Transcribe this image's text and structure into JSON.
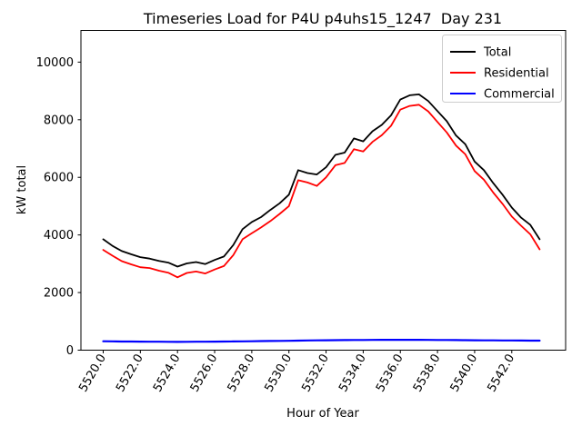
{
  "chart_data": {
    "type": "line",
    "title": "Timeseries Load for P4U p4uhs15_1247  Day 231",
    "xlabel": "Hour of Year",
    "ylabel": "kW total",
    "xlim": [
      5518.8,
      5544.9
    ],
    "ylim": [
      0,
      11100
    ],
    "grid": false,
    "legend_position": "upper right",
    "xticks": {
      "values": [
        5520,
        5522,
        5524,
        5526,
        5528,
        5530,
        5532,
        5534,
        5536,
        5538,
        5540,
        5542
      ],
      "labels": [
        "5520.0",
        "5522.0",
        "5524.0",
        "5526.0",
        "5528.0",
        "5530.0",
        "5532.0",
        "5534.0",
        "5536.0",
        "5538.0",
        "5540.0",
        "5542.0"
      ]
    },
    "yticks": {
      "values": [
        0,
        2000,
        4000,
        6000,
        8000,
        10000
      ],
      "labels": [
        "0",
        "2000",
        "4000",
        "6000",
        "8000",
        "10000"
      ]
    },
    "x": [
      5520.0,
      5520.5,
      5521.0,
      5521.5,
      5522.0,
      5522.5,
      5523.0,
      5523.5,
      5524.0,
      5524.5,
      5525.0,
      5525.5,
      5526.0,
      5526.5,
      5527.0,
      5527.5,
      5528.0,
      5528.5,
      5529.0,
      5529.5,
      5530.0,
      5530.5,
      5531.0,
      5531.5,
      5532.0,
      5532.5,
      5533.0,
      5533.5,
      5534.0,
      5534.5,
      5535.0,
      5535.5,
      5536.0,
      5536.5,
      5537.0,
      5537.5,
      5538.0,
      5538.5,
      5539.0,
      5539.5,
      5540.0,
      5540.5,
      5541.0,
      5541.5,
      5542.0,
      5542.5,
      5543.0,
      5543.5
    ],
    "series": [
      {
        "name": "Total",
        "color": "#000000",
        "values": [
          3850,
          3620,
          3440,
          3330,
          3230,
          3180,
          3100,
          3040,
          2900,
          3010,
          3060,
          2990,
          3130,
          3250,
          3650,
          4200,
          4450,
          4620,
          4870,
          5100,
          5400,
          6250,
          6150,
          6100,
          6350,
          6780,
          6860,
          7350,
          7250,
          7600,
          7820,
          8150,
          8700,
          8850,
          8880,
          8650,
          8300,
          7950,
          7450,
          7150,
          6550,
          6250,
          5800,
          5400,
          4950,
          4600,
          4350,
          3850
        ]
      },
      {
        "name": "Residential",
        "color": "#ff0000",
        "values": [
          3480,
          3280,
          3090,
          2980,
          2880,
          2850,
          2760,
          2690,
          2530,
          2680,
          2730,
          2660,
          2800,
          2920,
          3300,
          3850,
          4060,
          4260,
          4480,
          4730,
          5000,
          5900,
          5820,
          5700,
          6000,
          6420,
          6500,
          6980,
          6900,
          7230,
          7460,
          7790,
          8350,
          8480,
          8520,
          8290,
          7920,
          7560,
          7100,
          6800,
          6220,
          5920,
          5470,
          5080,
          4640,
          4320,
          4020,
          3500
        ]
      },
      {
        "name": "Commercial",
        "color": "#0000ff",
        "values": [
          310,
          305,
          300,
          298,
          296,
          294,
          292,
          290,
          288,
          290,
          292,
          292,
          295,
          298,
          302,
          306,
          310,
          314,
          318,
          322,
          326,
          332,
          336,
          340,
          344,
          348,
          350,
          352,
          354,
          356,
          358,
          360,
          360,
          360,
          358,
          356,
          354,
          352,
          350,
          348,
          345,
          342,
          340,
          338,
          336,
          334,
          332,
          330
        ]
      }
    ]
  }
}
